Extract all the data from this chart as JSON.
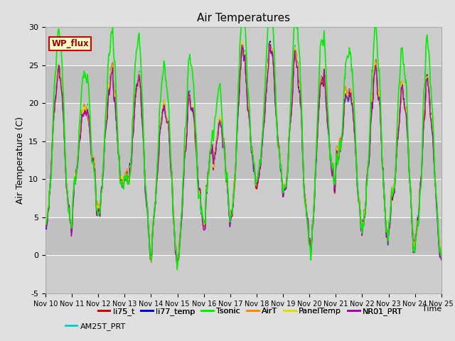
{
  "title": "Air Temperatures",
  "ylabel": "Air Temperature (C)",
  "xlabel": "Time",
  "ylim": [
    -5,
    30
  ],
  "yticks": [
    -5,
    0,
    5,
    10,
    15,
    20,
    25,
    30
  ],
  "xtick_labels": [
    "Nov 10",
    "Nov 11",
    "Nov 12",
    "Nov 13",
    "Nov 14",
    "Nov 15",
    "Nov 16",
    "Nov 17",
    "Nov 18",
    "Nov 19",
    "Nov 20",
    "Nov 21",
    "Nov 22",
    "Nov 23",
    "Nov 24",
    "Nov 25"
  ],
  "site_label": "WP_flux",
  "site_label_bg": "#ffffcc",
  "site_label_border": "#cc0000",
  "site_label_text_color": "#990000",
  "colors": {
    "li75_t": "#cc0000",
    "li77_temp": "#0000cc",
    "Tsonic": "#00ee00",
    "AirT": "#ff8800",
    "PanelTemp": "#dddd00",
    "NR01_PRT": "#aa00aa",
    "AM25T_PRT": "#00cccc"
  },
  "legend_entries": [
    [
      "li75_t",
      "li77_temp",
      "Tsonic",
      "AirT",
      "PanelTemp",
      "NR01_PRT"
    ],
    [
      "AM25T_PRT"
    ]
  ],
  "bg_color": "#e0e0e0",
  "plot_bg_color": "#d0d0d0",
  "band_light": "#cccccc",
  "band_dark": "#c0c0c0",
  "grid_color": "#ffffff",
  "seed": 12345,
  "n_points": 720
}
